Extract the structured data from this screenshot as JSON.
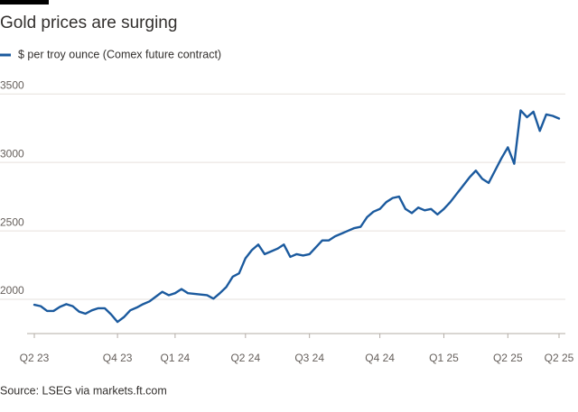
{
  "chart_data": {
    "type": "line",
    "title": "Gold prices are surging",
    "source": "Source: LSEG via markets.ft.com",
    "categories": [
      "Q2 23",
      null,
      null,
      null,
      null,
      null,
      null,
      null,
      null,
      null,
      null,
      null,
      null,
      "Q4 23",
      null,
      null,
      null,
      null,
      null,
      null,
      null,
      null,
      "Q1 24",
      null,
      null,
      null,
      null,
      null,
      null,
      null,
      null,
      null,
      null,
      "Q2 24",
      null,
      null,
      null,
      null,
      null,
      null,
      null,
      null,
      null,
      "Q3 24",
      null,
      null,
      null,
      null,
      null,
      null,
      null,
      null,
      null,
      null,
      "Q4 24",
      null,
      null,
      null,
      null,
      null,
      null,
      null,
      null,
      null,
      "Q1 25",
      null,
      null,
      null,
      null,
      null,
      null,
      null,
      null,
      null,
      "Q2 25",
      null,
      null,
      null,
      null,
      null,
      null,
      null,
      "Q2 25"
    ],
    "series": [
      {
        "name": "$ per troy ounce (Comex future contract)",
        "color": "#1b5a9e",
        "values": [
          1960,
          1950,
          1915,
          1915,
          1945,
          1965,
          1950,
          1910,
          1895,
          1920,
          1935,
          1935,
          1890,
          1835,
          1870,
          1920,
          1940,
          1965,
          1985,
          2020,
          2055,
          2030,
          2045,
          2075,
          2045,
          2040,
          2035,
          2030,
          2005,
          2045,
          2090,
          2165,
          2190,
          2300,
          2360,
          2400,
          2330,
          2350,
          2370,
          2400,
          2310,
          2330,
          2320,
          2330,
          2380,
          2430,
          2430,
          2460,
          2480,
          2500,
          2520,
          2530,
          2600,
          2640,
          2660,
          2710,
          2740,
          2750,
          2660,
          2630,
          2670,
          2650,
          2660,
          2620,
          2660,
          2710,
          2770,
          2830,
          2890,
          2940,
          2880,
          2850,
          2940,
          3030,
          3110,
          2990,
          3380,
          3330,
          3370,
          3230,
          3350,
          3340,
          3320
        ]
      }
    ],
    "ylim": [
      1750,
      3600
    ],
    "yticks": [
      2000,
      2500,
      3000,
      3500
    ],
    "grid": true
  }
}
